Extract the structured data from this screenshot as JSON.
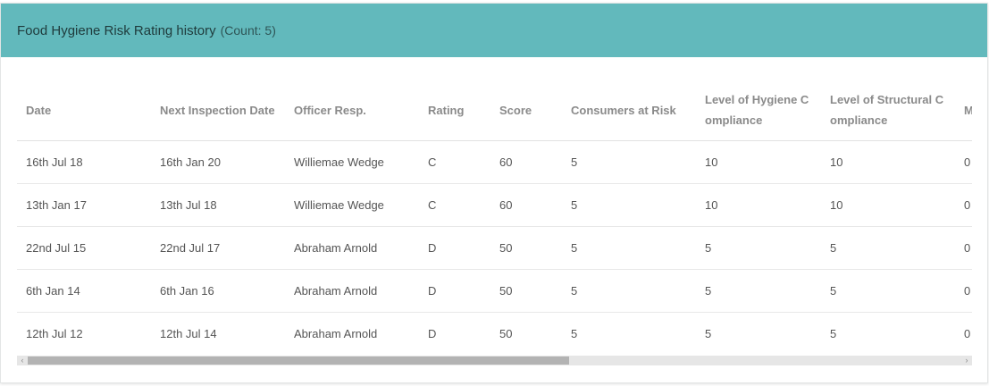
{
  "panel": {
    "title": "Food Hygiene Risk Rating history",
    "count": "(Count: 5)"
  },
  "table": {
    "columns": [
      "Date",
      "Next Inspection Date",
      "Officer Resp.",
      "Rating",
      "Score",
      "Consumers at Risk",
      "Level of Hygiene Compliance",
      "Level of Structural Compliance",
      "MP"
    ],
    "rows": [
      [
        "16th Jul 18",
        "16th Jan 20",
        "Williemae Wedge",
        "C",
        "60",
        "5",
        "10",
        "10",
        "0"
      ],
      [
        "13th Jan 17",
        "13th Jul 18",
        "Williemae Wedge",
        "C",
        "60",
        "5",
        "10",
        "10",
        "0"
      ],
      [
        "22nd Jul 15",
        "22nd Jul 17",
        "Abraham Arnold",
        "D",
        "50",
        "5",
        "5",
        "5",
        "0"
      ],
      [
        "6th Jan 14",
        "6th Jan 16",
        "Abraham Arnold",
        "D",
        "50",
        "5",
        "5",
        "5",
        "0"
      ],
      [
        "12th Jul 12",
        "12th Jul 14",
        "Abraham Arnold",
        "D",
        "50",
        "5",
        "5",
        "5",
        "0"
      ]
    ]
  },
  "scrollbar": {
    "left_arrow": "‹",
    "right_arrow": "›",
    "position_fraction": 0
  },
  "colors": {
    "header_bg": "#62b9bc",
    "header_text": "#1f3b3c"
  }
}
